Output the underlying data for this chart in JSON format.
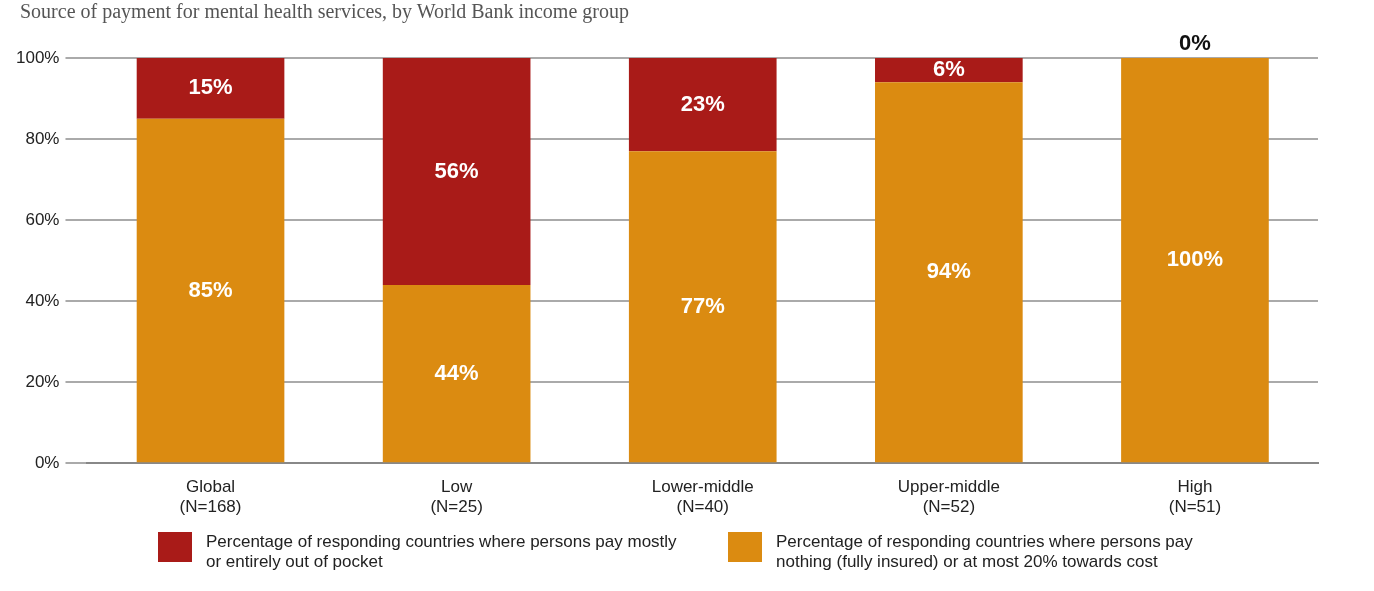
{
  "chart_data": {
    "type": "bar",
    "title": "Source of payment for mental health services, by World Bank income group",
    "stacked": true,
    "categories": [
      "Global\n(N=168)",
      "Low\n(N=25)",
      "Lower-middle\n(N=40)",
      "Upper-middle\n(N=52)",
      "High\n(N=51)"
    ],
    "series": [
      {
        "name": "Percentage of responding countries where persons pay nothing (fully insured) or at most 20% towards cost",
        "color": "#db8b11",
        "values": [
          85,
          44,
          77,
          94,
          100
        ],
        "value_labels": [
          "85%",
          "44%",
          "77%",
          "94%",
          "100%"
        ]
      },
      {
        "name": "Percentage of responding countries where persons pay mostly or entirely out of pocket",
        "color": "#a91b18",
        "values": [
          15,
          56,
          23,
          6,
          0
        ],
        "value_labels": [
          "15%",
          "56%",
          "23%",
          "6%",
          "0%"
        ]
      }
    ],
    "ylim": [
      0,
      100
    ],
    "yticks": [
      {
        "value": 0,
        "label": "0%"
      },
      {
        "value": 20,
        "label": "20%"
      },
      {
        "value": 40,
        "label": "40%"
      },
      {
        "value": 60,
        "label": "60%"
      },
      {
        "value": 80,
        "label": "80%"
      },
      {
        "value": 100,
        "label": "100%"
      }
    ],
    "grid": "y",
    "legend": "bottom"
  }
}
